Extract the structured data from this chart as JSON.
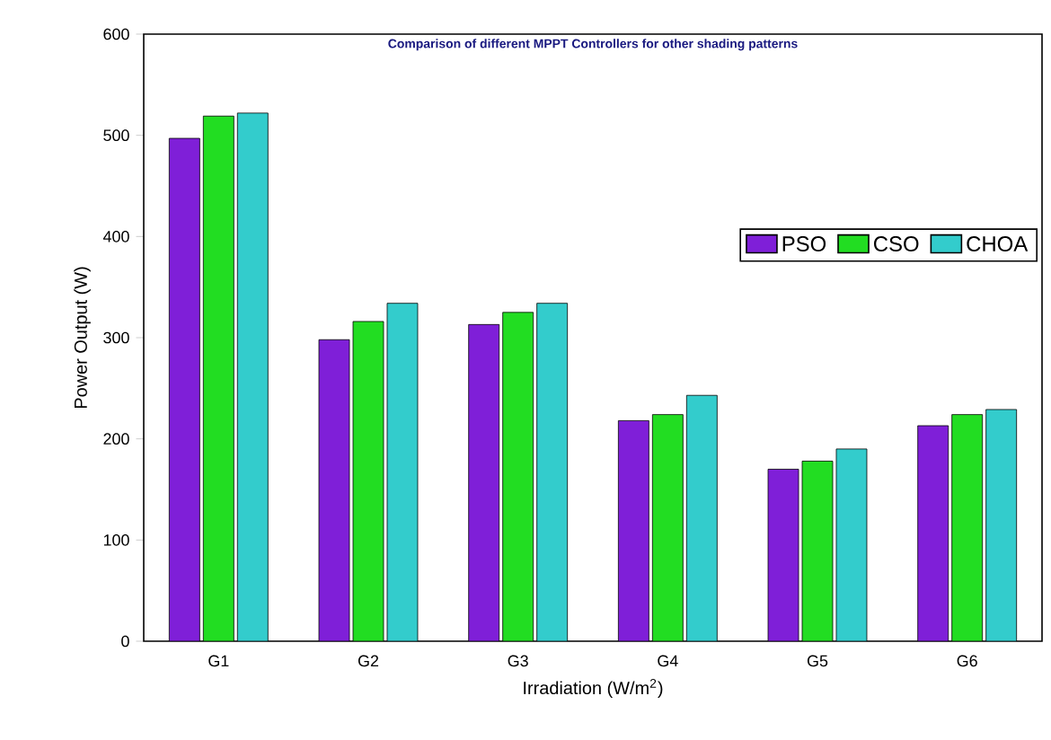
{
  "chart_data": {
    "type": "bar",
    "title": "Comparison of different MPPT Controllers for other shading patterns",
    "xlabel": "Irradiation (W/m$^{2}$)",
    "ylabel": "Power Output (W)",
    "categories": [
      "G1",
      "G2",
      "G3",
      "G4",
      "G5",
      "G6"
    ],
    "series": [
      {
        "name": "PSO",
        "color": "#7f1fd8",
        "values": [
          497,
          298,
          313,
          218,
          170,
          213
        ]
      },
      {
        "name": "CSO",
        "color": "#22dd22",
        "values": [
          519,
          316,
          325,
          224,
          178,
          224
        ]
      },
      {
        "name": "CHOA",
        "color": "#33cccc",
        "values": [
          522,
          334,
          334,
          243,
          190,
          229
        ]
      }
    ],
    "ylim": [
      0,
      600
    ],
    "yticks": [
      0,
      100,
      200,
      300,
      400,
      500,
      600
    ],
    "legend": "top right"
  }
}
